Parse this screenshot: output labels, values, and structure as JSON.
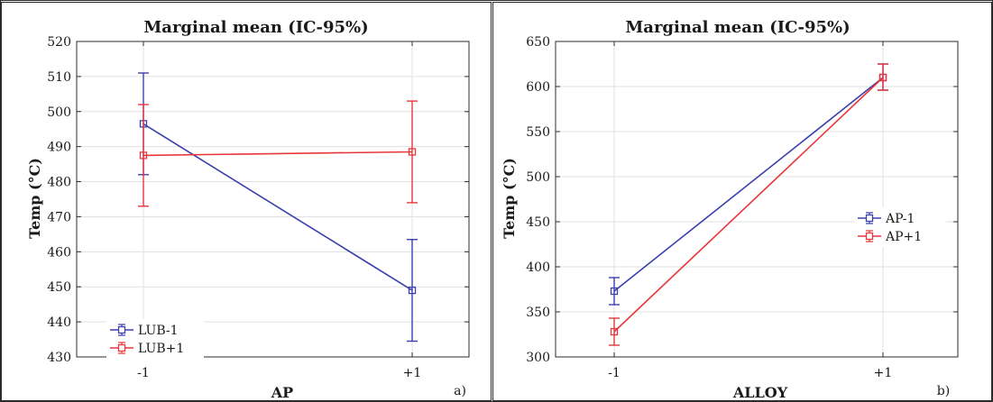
{
  "chart_data": [
    {
      "type": "line",
      "title": "Marginal mean (IC-95%)",
      "xlabel": "AP",
      "ylabel": "Temp (°C)",
      "panel_label": "a)",
      "categories": [
        "-1",
        "+1"
      ],
      "ylim": [
        430,
        520
      ],
      "yticks": [
        430,
        440,
        450,
        460,
        470,
        480,
        490,
        500,
        510,
        520
      ],
      "grid": true,
      "legend_position": "bottom-left",
      "series": [
        {
          "name": "LUB-1",
          "color": "#3a3fae",
          "values": [
            496.5,
            449.0
          ],
          "lower": [
            482.0,
            434.5
          ],
          "upper": [
            511.0,
            463.5
          ]
        },
        {
          "name": "LUB+1",
          "color": "#e8373a",
          "values": [
            487.5,
            488.5
          ],
          "lower": [
            473.0,
            474.0
          ],
          "upper": [
            502.0,
            503.0
          ]
        }
      ]
    },
    {
      "type": "line",
      "title": "Marginal mean (IC-95%)",
      "xlabel": "ALLOY",
      "ylabel": "Temp (°C)",
      "panel_label": "b)",
      "categories": [
        "-1",
        "+1"
      ],
      "ylim": [
        300,
        650
      ],
      "yticks": [
        300,
        350,
        400,
        450,
        500,
        550,
        600,
        650
      ],
      "grid": true,
      "legend_position": "right",
      "series": [
        {
          "name": "AP-1",
          "color": "#3a3fae",
          "values": [
            373.0,
            610.0
          ],
          "lower": [
            358.0,
            596.0
          ],
          "upper": [
            388.0,
            625.0
          ]
        },
        {
          "name": "AP+1",
          "color": "#e8373a",
          "values": [
            328.0,
            610.0
          ],
          "lower": [
            313.0,
            596.0
          ],
          "upper": [
            343.0,
            625.0
          ]
        }
      ]
    }
  ]
}
